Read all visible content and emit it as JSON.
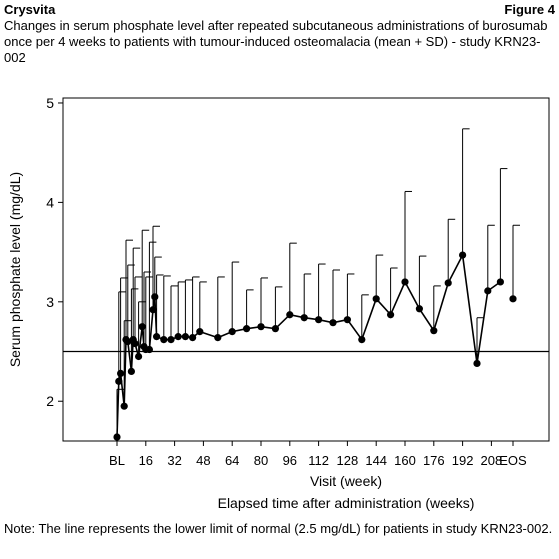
{
  "header": {
    "product": "Crysvita",
    "figure_label": "Figure 4",
    "caption": "Changes in serum phosphate level after repeated subcutaneous administrations of burosumab once per 4 weeks to patients with tumour-induced osteomalacia (mean + SD) - study KRN23-002"
  },
  "footnote": "Note: The line represents the lower limit of normal (2.5 mg/dL) for patients in study KRN23-002.",
  "chart_data": {
    "type": "line",
    "xlabel": "Visit (week)",
    "xlabel2": "Elapsed time after administration (weeks)",
    "ylabel": "Serum phosphate level (mg/dL)",
    "ylim": [
      1.6,
      5.05
    ],
    "xlim": [
      -30,
      240
    ],
    "yticks": [
      2,
      3,
      4,
      5
    ],
    "xticks": [
      {
        "x": 0,
        "label": "BL"
      },
      {
        "x": 16,
        "label": "16"
      },
      {
        "x": 32,
        "label": "32"
      },
      {
        "x": 48,
        "label": "48"
      },
      {
        "x": 64,
        "label": "64"
      },
      {
        "x": 80,
        "label": "80"
      },
      {
        "x": 96,
        "label": "96"
      },
      {
        "x": 112,
        "label": "112"
      },
      {
        "x": 128,
        "label": "128"
      },
      {
        "x": 144,
        "label": "144"
      },
      {
        "x": 160,
        "label": "160"
      },
      {
        "x": 176,
        "label": "176"
      },
      {
        "x": 192,
        "label": "192"
      },
      {
        "x": 208,
        "label": "208"
      },
      {
        "x": 220,
        "label": "EOS"
      }
    ],
    "reference_line": 2.5,
    "series": [
      {
        "points": [
          {
            "x": 0,
            "mean": 1.64,
            "upper": 2.12
          },
          {
            "x": 1,
            "mean": 2.2,
            "upper": 3.1
          },
          {
            "x": 2,
            "mean": 2.28,
            "upper": 3.24
          },
          {
            "x": 4,
            "mean": 1.95,
            "upper": 2.81
          },
          {
            "x": 5,
            "mean": 2.62,
            "upper": 3.62
          },
          {
            "x": 6,
            "mean": 2.6,
            "upper": 3.37
          },
          {
            "x": 8,
            "mean": 2.3,
            "upper": 3.13
          },
          {
            "x": 9,
            "mean": 2.62,
            "upper": 3.54
          },
          {
            "x": 10,
            "mean": 2.58,
            "upper": 3.25
          },
          {
            "x": 12,
            "mean": 2.45,
            "upper": 3.0
          },
          {
            "x": 14,
            "mean": 2.75,
            "upper": 3.72
          },
          {
            "x": 15,
            "mean": 2.55,
            "upper": 3.3
          },
          {
            "x": 16,
            "mean": 2.52,
            "upper": 3.25
          },
          {
            "x": 18,
            "mean": 2.52,
            "upper": 3.6
          },
          {
            "x": 20,
            "mean": 2.92,
            "upper": 3.76
          },
          {
            "x": 21,
            "mean": 3.05,
            "upper": 3.45
          },
          {
            "x": 22,
            "mean": 2.65,
            "upper": 3.27
          },
          {
            "x": 26,
            "mean": 2.62,
            "upper": 3.26
          },
          {
            "x": 30,
            "mean": 2.62,
            "upper": 3.16
          },
          {
            "x": 34,
            "mean": 2.65,
            "upper": 3.2
          },
          {
            "x": 38,
            "mean": 2.65,
            "upper": 3.22
          },
          {
            "x": 42,
            "mean": 2.64,
            "upper": 3.25
          },
          {
            "x": 46,
            "mean": 2.7,
            "upper": 3.2
          },
          {
            "x": 56,
            "mean": 2.64,
            "upper": 3.25
          },
          {
            "x": 64,
            "mean": 2.7,
            "upper": 3.4
          },
          {
            "x": 72,
            "mean": 2.73,
            "upper": 3.12
          },
          {
            "x": 80,
            "mean": 2.75,
            "upper": 3.24
          },
          {
            "x": 88,
            "mean": 2.73,
            "upper": 3.15
          },
          {
            "x": 96,
            "mean": 2.87,
            "upper": 3.59
          },
          {
            "x": 104,
            "mean": 2.84,
            "upper": 3.28
          },
          {
            "x": 112,
            "mean": 2.82,
            "upper": 3.38
          },
          {
            "x": 120,
            "mean": 2.79,
            "upper": 3.32
          },
          {
            "x": 128,
            "mean": 2.82,
            "upper": 3.28
          },
          {
            "x": 136,
            "mean": 2.62,
            "upper": 3.07
          },
          {
            "x": 144,
            "mean": 3.03,
            "upper": 3.47
          },
          {
            "x": 152,
            "mean": 2.87,
            "upper": 3.34
          },
          {
            "x": 160,
            "mean": 3.2,
            "upper": 4.11
          },
          {
            "x": 168,
            "mean": 2.93,
            "upper": 3.46
          },
          {
            "x": 176,
            "mean": 2.71,
            "upper": 3.16
          },
          {
            "x": 184,
            "mean": 3.19,
            "upper": 3.83
          },
          {
            "x": 192,
            "mean": 3.47,
            "upper": 4.74
          },
          {
            "x": 200,
            "mean": 2.38,
            "upper": 2.84
          },
          {
            "x": 206,
            "mean": 3.11,
            "upper": 3.77
          },
          {
            "x": 213,
            "mean": 3.2,
            "upper": 4.34
          }
        ],
        "extra_points": [
          {
            "x": 220,
            "mean": 3.03,
            "upper": 3.77
          }
        ]
      }
    ]
  }
}
